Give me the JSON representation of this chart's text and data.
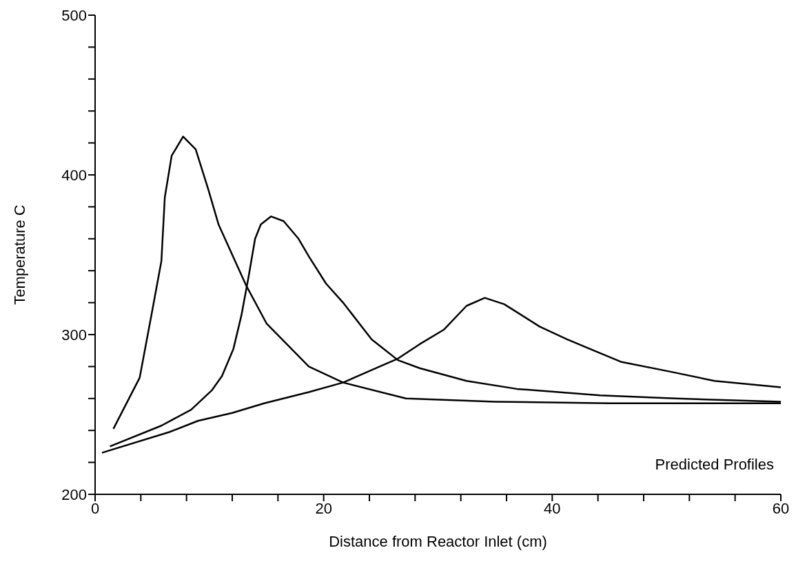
{
  "chart_data": {
    "type": "line",
    "xlabel": "Distance from Reactor Inlet (cm)",
    "ylabel": "Temperature C",
    "annotations": [
      "Predicted Profiles"
    ],
    "xlim": [
      0,
      60
    ],
    "ylim": [
      200,
      500
    ],
    "xticks": [
      0,
      {
        "value": 4,
        "label": null
      },
      {
        "value": 8,
        "label": null
      },
      {
        "value": 12,
        "label": null
      },
      {
        "value": 16,
        "label": null
      },
      20,
      {
        "value": 24,
        "label": null
      },
      {
        "value": 28,
        "label": null
      },
      {
        "value": 32,
        "label": null
      },
      {
        "value": 36,
        "label": null
      },
      40,
      {
        "value": 44,
        "label": null
      },
      {
        "value": 48,
        "label": null
      },
      {
        "value": 52,
        "label": null
      },
      {
        "value": 56,
        "label": null
      },
      60
    ],
    "yticks": [
      200,
      {
        "value": 220,
        "label": null
      },
      {
        "value": 240,
        "label": null
      },
      {
        "value": 260,
        "label": null
      },
      {
        "value": 280,
        "label": null
      },
      300,
      {
        "value": 320,
        "label": null
      },
      {
        "value": 340,
        "label": null
      },
      {
        "value": 360,
        "label": null
      },
      {
        "value": 380,
        "label": null
      },
      400,
      {
        "value": 420,
        "label": null
      },
      {
        "value": 440,
        "label": null
      },
      {
        "value": 460,
        "label": null
      },
      {
        "value": 480,
        "label": null
      },
      500
    ],
    "grid": false,
    "marker": "none",
    "line_style": "solid",
    "series": [
      {
        "color": "#000000",
        "x": [
          1.6,
          3.9,
          5,
          5.8,
          6.1,
          6.7,
          7.7,
          8.8,
          9.9,
          10.8,
          13.2,
          15,
          18.7,
          21.7,
          27.2,
          35,
          45,
          60
        ],
        "values": [
          241,
          273,
          315,
          346,
          386,
          412,
          424,
          416,
          391,
          369,
          331,
          307,
          280,
          270,
          260,
          258,
          257,
          257
        ]
      },
      {
        "color": "#000000",
        "x": [
          1.3,
          5.8,
          8.4,
          10.2,
          11.1,
          12.1,
          12.8,
          13.4,
          14,
          14.5,
          15.4,
          16.5,
          17.8,
          18.7,
          20.2,
          21.7,
          24.2,
          26.5,
          28.4,
          32.5,
          36.9,
          44.2,
          50.8,
          60
        ],
        "values": [
          230,
          243,
          253,
          265,
          274,
          291,
          312,
          335,
          360,
          369,
          374,
          371,
          360,
          349,
          332,
          320,
          297,
          284,
          279,
          271,
          266,
          262,
          260,
          258
        ]
      },
      {
        "color": "#000000",
        "x": [
          0.6,
          6.5,
          9,
          12,
          14.8,
          18.7,
          21.7,
          24.9,
          26.5,
          28.4,
          30.5,
          32.5,
          34.1,
          35.8,
          38.9,
          41.3,
          46,
          50.2,
          54.2,
          60
        ],
        "values": [
          226,
          239,
          246,
          251,
          257,
          264,
          270,
          280,
          285,
          294,
          303,
          318,
          323,
          319,
          305,
          297,
          283,
          277,
          271,
          267
        ]
      }
    ]
  }
}
